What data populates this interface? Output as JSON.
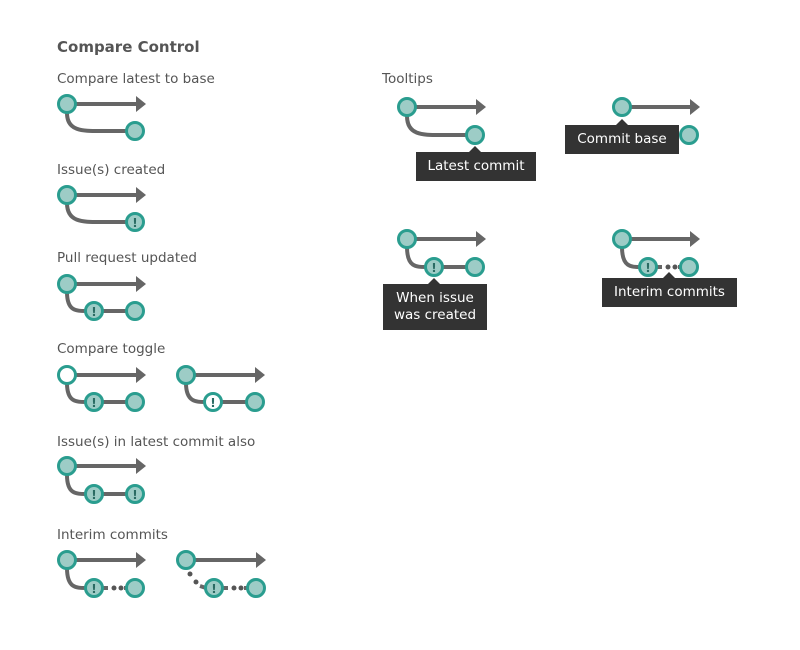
{
  "title": "Compare Control",
  "colors": {
    "node_fill": "#9dccc6",
    "node_stroke": "#2a9d8f",
    "line": "#666666",
    "tooltip_bg": "#333333"
  },
  "sections": [
    {
      "label": "Compare latest to base"
    },
    {
      "label": "Issue(s) created"
    },
    {
      "label": "Pull request updated"
    },
    {
      "label": "Compare toggle"
    },
    {
      "label": "Issue(s) in latest commit also"
    },
    {
      "label": "Interim commits"
    }
  ],
  "tooltips": {
    "heading": "Tooltips",
    "latest_commit": "Latest commit",
    "commit_base": "Commit base",
    "when_issue_line1": "When issue",
    "when_issue_line2": "was created",
    "interim_commits": "Interim commits"
  }
}
